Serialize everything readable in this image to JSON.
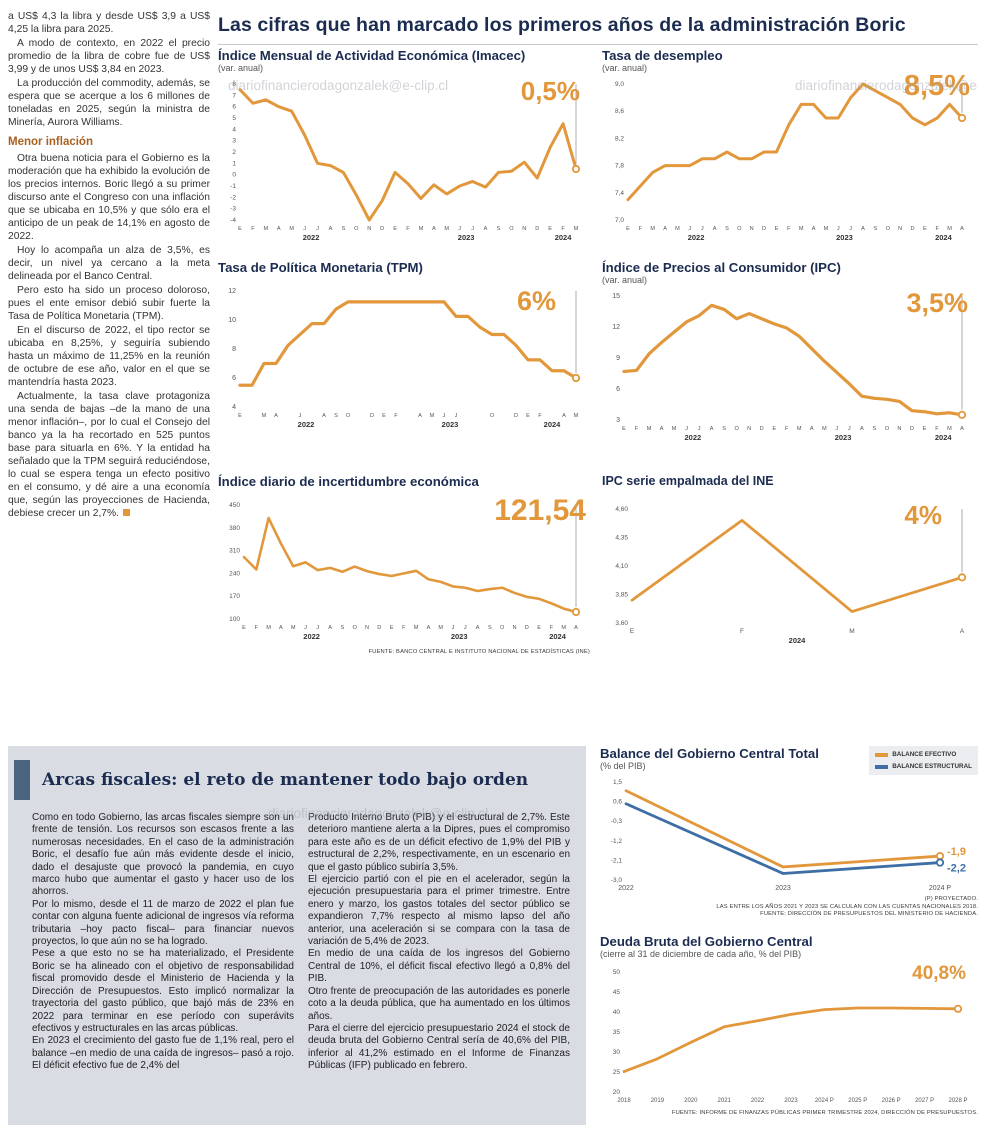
{
  "page": {
    "main_title": "Las cifras que han marcado los primeros años de la administración Boric",
    "watermark": "diariofinancierodagonzalek@e-clip.cl"
  },
  "colors": {
    "orange": "#E2973B",
    "blue": "#3D6EA5",
    "navy": "#1B2C50",
    "subhead_brown": "#A9611F",
    "panel_gray": "#D9DCE3",
    "accent_bar": "#4A6480"
  },
  "left_article": {
    "paragraphs_1": [
      "a US$ 4,3 la libra y desde US$ 3,9 a US$ 4,25 la libra para 2025.",
      "A modo de contexto, en 2022 el precio promedio de la libra de cobre fue de US$ 3,99 y de unos US$ 3,84 en 2023.",
      "La producción del commodity, además, se espera que se acerque a los 6 millones de toneladas en 2025, según la ministra de Minería, Aurora Williams."
    ],
    "subheading": "Menor inflación",
    "paragraphs_2": [
      "Otra buena noticia para el Gobierno es la moderación que ha exhibido la evolución de los precios internos. Boric llegó a su primer discurso ante el Congreso con una inflación que se ubicaba en 10,5% y que sólo era el anticipo de un peak de 14,1% en agosto de 2022.",
      "Hoy lo acompaña un alza de 3,5%, es decir, un nivel ya cercano a la meta delineada por el Banco Central.",
      "Pero esto ha sido un proceso doloroso, pues el ente emisor debió subir fuerte la Tasa de Política Monetaria (TPM).",
      "En el discurso de 2022, el tipo rector se ubicaba en 8,25%, y seguiría subiendo hasta un máximo de 11,25% en la reunión de octubre de ese año, valor en el que se mantendría hasta 2023.",
      "Actualmente, la tasa clave protagoniza una senda de bajas –de la mano de una menor inflación–, por lo cual el Consejo del banco ya la ha recortado en 525 puntos base para situarla en 6%. Y la entidad ha señalado que la TPM seguirá reduciéndose, lo cual se espera tenga un efecto positivo en el consumo, y dé aire a una economía que, según las proyecciones de Hacienda, debiese crecer un 2,7%."
    ]
  },
  "bottom_article": {
    "title": "Arcas fiscales: el reto de mantener todo bajo orden",
    "col1": [
      "Como en todo Gobierno, las arcas fiscales siempre son un frente de tensión. Los recursos son escasos frente a las numerosas necesidades. En el caso de la administración Boric, el desafío fue aún más evidente desde el inicio, dado el desajuste que provocó la pandemia, en cuyo marco hubo que aumentar el gasto y hacer uso de los ahorros.",
      "Por lo mismo, desde el 11 de marzo de 2022 el plan fue contar con alguna fuente adicional de ingresos vía reforma tributaria –hoy pacto fiscal– para financiar nuevos proyectos, lo que aún no se ha logrado.",
      "Pese a que esto no se ha materializado, el Presidente Boric se ha alineado con el objetivo de responsabilidad fiscal promovido desde el Ministerio de Hacienda y la Dirección de Presupuestos. Esto implicó normalizar la trayectoria del gasto público, que bajó más de 23% en 2022 para terminar en ese período con superávits efectivos y estructurales en las arcas públicas.",
      "En 2023 el crecimiento del gasto fue de 1,1% real, pero el balance –en medio de una caída de ingresos– pasó a rojo. El déficit efectivo fue de 2,4% del"
    ],
    "col2": [
      "Producto Interno Bruto (PIB) y el estructural de 2,7%. Este deterioro mantiene alerta a la Dipres, pues el compromiso para este año es de un déficit efectivo de 1,9% del PIB y estructural de 2,2%, respectivamente, en un escenario en que el gasto público subiría 3,5%.",
      "El ejercicio partió con el pie en el acelerador, según la ejecución presupuestaria para el primer trimestre. Entre enero y marzo, los gastos totales del sector público se expandieron 7,7% respecto al mismo lapso del año anterior, una aceleración si se compara con la tasa de variación de 5,4% de 2023.",
      "En medio de una caída de los ingresos del Gobierno Central de 10%, el déficit fiscal efectivo llegó a 0,8% del PIB.",
      "Otro frente de preocupación de las autoridades es ponerle coto a la deuda pública, que ha aumentado en los últimos años.",
      "Para el cierre del ejercicio presupuestario 2024 el stock de deuda bruta del Gobierno Central sería de 40,6% del PIB, inferior al 41,2% estimado en el Informe de Finanzas Públicas (IFP) publicado en febrero."
    ]
  },
  "sources": {
    "top_charts": "FUENTE: BANCO CENTRAL E INSTITUTO NACIONAL DE ESTADÍSTICAS (INE)",
    "balance_note1": "(P) PROYECTADO.",
    "balance_note2": "LAS ENTRE LOS AÑOS 2021 Y 2023 SE CALCULAN CON LAS CUENTAS NACIONALES 2018.",
    "balance_note3": "FUENTE: DIRECCIÓN DE PRESUPUESTOS DEL MINISTERIO DE HACIENDA.",
    "deuda_note": "FUENTE: INFORME DE FINANZAS PÚBLICAS PRIMER TRIMESTRE 2024, DIRECCIÓN DE PRESUPUESTOS."
  },
  "chart_data": [
    {
      "id": "imacec",
      "type": "line",
      "title": "Índice Mensual de Actividad Económica (Imacec)",
      "subtitle": "(var. anual)",
      "callout": "0,5%",
      "ylim": [
        -4,
        8
      ],
      "yticks": [
        "8",
        "7",
        "6",
        "5",
        "4",
        "3",
        "2",
        "1",
        "0",
        "-1",
        "-2",
        "-3",
        "-4"
      ],
      "x_labels": [
        "E",
        "F",
        "M",
        "A",
        "M",
        "J",
        "J",
        "A",
        "S",
        "O",
        "N",
        "D",
        "E",
        "F",
        "M",
        "A",
        "M",
        "J",
        "J",
        "A",
        "S",
        "O",
        "N",
        "D",
        "E",
        "F",
        "M"
      ],
      "year_labels": [
        {
          "label": "2022",
          "from": 0,
          "to": 11
        },
        {
          "label": "2023",
          "from": 12,
          "to": 23
        },
        {
          "label": "2024",
          "from": 24,
          "to": 26
        }
      ],
      "callout_line": true,
      "series": [
        {
          "name": "Imacec",
          "color": "#E2973B",
          "values": [
            7.5,
            6.3,
            6.6,
            6.0,
            5.6,
            3.5,
            1.0,
            0.8,
            0.2,
            -1.8,
            -4.0,
            -2.3,
            0.2,
            -0.8,
            -2.1,
            -0.9,
            -1.7,
            -1.0,
            -0.6,
            -1.1,
            0.2,
            0.3,
            1.1,
            -0.3,
            2.4,
            4.5,
            0.5
          ]
        }
      ]
    },
    {
      "id": "desempleo",
      "type": "line",
      "title": "Tasa de desempleo",
      "subtitle": "(var. anual)",
      "callout": "8,5%",
      "ylim": [
        7.0,
        9.0
      ],
      "yticks": [
        "9,0",
        "8,6",
        "8,2",
        "7,8",
        "7,4",
        "7,0"
      ],
      "x_labels": [
        "E",
        "F",
        "M",
        "A",
        "M",
        "J",
        "J",
        "A",
        "S",
        "O",
        "N",
        "D",
        "E",
        "F",
        "M",
        "A",
        "M",
        "J",
        "J",
        "A",
        "S",
        "O",
        "N",
        "D",
        "E",
        "F",
        "M",
        "A"
      ],
      "year_labels": [
        {
          "label": "2022",
          "from": 0,
          "to": 11
        },
        {
          "label": "2023",
          "from": 12,
          "to": 23
        },
        {
          "label": "2024",
          "from": 24,
          "to": 27
        }
      ],
      "callout_line": true,
      "series": [
        {
          "name": "Tasa de desempleo",
          "color": "#E2973B",
          "values": [
            7.3,
            7.5,
            7.7,
            7.8,
            7.8,
            7.8,
            7.9,
            7.9,
            8.0,
            7.9,
            7.9,
            8.0,
            8.0,
            8.4,
            8.7,
            8.7,
            8.5,
            8.5,
            8.8,
            9.0,
            8.9,
            8.8,
            8.7,
            8.5,
            8.4,
            8.5,
            8.7,
            8.5
          ]
        }
      ]
    },
    {
      "id": "tpm",
      "type": "line",
      "title": "Tasa de Política Monetaria (TPM)",
      "callout": "6%",
      "ylim": [
        4,
        12
      ],
      "yticks": [
        "12",
        "10",
        "8",
        "6",
        "4"
      ],
      "x_labels": [
        "E",
        "",
        "M",
        "A",
        "",
        "J",
        "",
        "A",
        "S",
        "O",
        "",
        "D",
        "E",
        "F",
        "",
        "A",
        "M",
        "J",
        "J",
        "",
        "",
        "O",
        "",
        "D",
        "E",
        "F",
        "",
        "A",
        "M"
      ],
      "year_labels": [
        {
          "label": "2022",
          "from": 0,
          "to": 11
        },
        {
          "label": "2023",
          "from": 12,
          "to": 23
        },
        {
          "label": "2024",
          "from": 24,
          "to": 28
        }
      ],
      "callout_line": true,
      "series": [
        {
          "name": "TPM",
          "color": "#E2973B",
          "values": [
            5.5,
            5.5,
            7.0,
            7.0,
            8.25,
            9.0,
            9.75,
            9.75,
            10.75,
            11.25,
            11.25,
            11.25,
            11.25,
            11.25,
            11.25,
            11.25,
            11.25,
            11.25,
            10.25,
            10.25,
            9.5,
            9.0,
            9.0,
            8.25,
            7.25,
            7.25,
            6.5,
            6.5,
            6.0
          ]
        }
      ]
    },
    {
      "id": "ipc",
      "type": "line",
      "title": "Índice de Precios al Consumidor (IPC)",
      "subtitle": "(var. anual)",
      "callout": "3,5%",
      "ylim": [
        3,
        15
      ],
      "yticks": [
        "15",
        "12",
        "9",
        "6",
        "3"
      ],
      "x_labels": [
        "E",
        "F",
        "M",
        "A",
        "M",
        "J",
        "J",
        "A",
        "S",
        "O",
        "N",
        "D",
        "E",
        "F",
        "M",
        "A",
        "M",
        "J",
        "J",
        "A",
        "S",
        "O",
        "N",
        "D",
        "E",
        "F",
        "M",
        "A"
      ],
      "year_labels": [
        {
          "label": "2022",
          "from": 0,
          "to": 11
        },
        {
          "label": "2023",
          "from": 12,
          "to": 23
        },
        {
          "label": "2024",
          "from": 24,
          "to": 27
        }
      ],
      "callout_line": true,
      "series": [
        {
          "name": "IPC",
          "color": "#E2973B",
          "values": [
            7.7,
            7.8,
            9.4,
            10.5,
            11.5,
            12.5,
            13.1,
            14.1,
            13.7,
            12.8,
            13.3,
            12.8,
            12.3,
            11.9,
            11.1,
            9.9,
            8.7,
            7.6,
            6.5,
            5.3,
            5.1,
            5.0,
            4.8,
            3.9,
            3.8,
            3.6,
            3.7,
            3.5
          ]
        }
      ]
    },
    {
      "id": "incert",
      "type": "line",
      "title": "Índice diario de incertidumbre económica",
      "callout": "121,54",
      "ylim": [
        100,
        450
      ],
      "yticks": [
        "450",
        "380",
        "310",
        "240",
        "170",
        "100"
      ],
      "x_labels": [
        "E",
        "F",
        "M",
        "A",
        "M",
        "J",
        "J",
        "A",
        "S",
        "O",
        "N",
        "D",
        "E",
        "F",
        "M",
        "A",
        "M",
        "J",
        "J",
        "A",
        "S",
        "O",
        "N",
        "D",
        "E",
        "F",
        "M",
        "A"
      ],
      "year_labels": [
        {
          "label": "2022",
          "from": 0,
          "to": 11
        },
        {
          "label": "2023",
          "from": 12,
          "to": 23
        },
        {
          "label": "2024",
          "from": 24,
          "to": 27
        }
      ],
      "callout_line": true,
      "series": [
        {
          "name": "Incertidumbre económica",
          "color": "#E2973B",
          "values": [
            290,
            252,
            410,
            332,
            262,
            274,
            250,
            257,
            245,
            261,
            247,
            238,
            232,
            240,
            248,
            222,
            214,
            200,
            196,
            186,
            192,
            196,
            180,
            168,
            162,
            148,
            132,
            121.54
          ]
        }
      ]
    },
    {
      "id": "ipc_ine",
      "type": "line",
      "title": "IPC serie empalmada del INE",
      "callout": "4%",
      "ylim": [
        3.6,
        4.6
      ],
      "yticks": [
        "4,60",
        "4,35",
        "4,10",
        "3,85",
        "3,60"
      ],
      "x_labels": [
        "E",
        "F",
        "M",
        "A"
      ],
      "year_labels": [
        {
          "label": "2024",
          "from": 0,
          "to": 3
        }
      ],
      "callout_line": true,
      "series": [
        {
          "name": "IPC serie empalmada",
          "color": "#E2973B",
          "values": [
            3.8,
            4.5,
            3.7,
            4.0
          ]
        }
      ]
    },
    {
      "id": "balance",
      "type": "line",
      "title": "Balance del Gobierno Central Total",
      "subtitle": "(% del PIB)",
      "ylim": [
        -3.0,
        1.5
      ],
      "yticks": [
        "1,5",
        "0,6",
        "-0,3",
        "-1,2",
        "-2,1",
        "-3,0"
      ],
      "x_labels": [
        "2022",
        "2023",
        "2024 P"
      ],
      "callout_line": false,
      "series": [
        {
          "name": "BALANCE EFECTIVO",
          "color": "#E2973B",
          "callout": "-1,9",
          "values": [
            1.1,
            -2.4,
            -1.9
          ]
        },
        {
          "name": "BALANCE ESTRUCTURAL",
          "color": "#3D6EA5",
          "callout": "-2,2",
          "values": [
            0.5,
            -2.7,
            -2.2
          ]
        }
      ]
    },
    {
      "id": "deuda",
      "type": "line",
      "title": "Deuda Bruta del Gobierno Central",
      "subtitle": "(cierre al 31 de diciembre de cada año, % del PIB)",
      "callout": "40,8%",
      "ylim": [
        20,
        50
      ],
      "yticks": [
        "50",
        "45",
        "40",
        "35",
        "30",
        "25",
        "20"
      ],
      "x_labels": [
        "2018",
        "2019",
        "2020",
        "2021",
        "2022",
        "2023",
        "2024 P",
        "2025 P",
        "2026 P",
        "2027 P",
        "2028 P"
      ],
      "callout_line": false,
      "series": [
        {
          "name": "Deuda bruta",
          "color": "#E2973B",
          "values": [
            25.1,
            28.3,
            32.4,
            36.3,
            37.8,
            39.4,
            40.6,
            41.0,
            41.0,
            40.9,
            40.8
          ]
        }
      ]
    }
  ]
}
